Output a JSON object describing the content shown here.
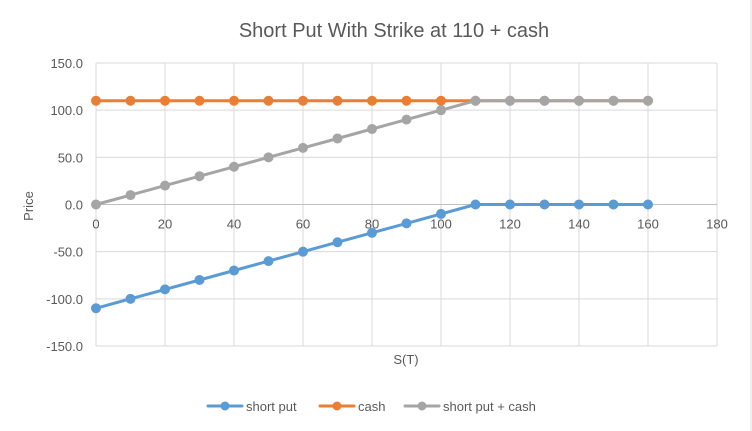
{
  "chart_data": {
    "type": "scatter",
    "title": "Short Put With Strike at 110 + cash",
    "xlabel": "S(T)",
    "ylabel": "Price",
    "xlim": [
      0,
      180
    ],
    "ylim": [
      -150,
      150
    ],
    "xticks": [
      0,
      20,
      40,
      60,
      80,
      100,
      120,
      140,
      160,
      180
    ],
    "yticks": [
      150,
      100,
      50,
      0,
      -50,
      -100,
      -150
    ],
    "ytick_labels": [
      "150.0",
      "100.0",
      "50.0",
      "0.0",
      "-50.0",
      "-100.0",
      "-150.0"
    ],
    "grid": true,
    "legend_position": "bottom",
    "x": [
      0,
      10,
      20,
      30,
      40,
      50,
      60,
      70,
      80,
      90,
      100,
      110,
      120,
      130,
      140,
      150,
      160
    ],
    "series": [
      {
        "name": "short put",
        "color": "#5B9BD5",
        "values": [
          -110,
          -100,
          -90,
          -80,
          -70,
          -60,
          -50,
          -40,
          -30,
          -20,
          -10,
          0,
          0,
          0,
          0,
          0,
          0
        ]
      },
      {
        "name": "cash",
        "color": "#ED7D31",
        "values": [
          110,
          110,
          110,
          110,
          110,
          110,
          110,
          110,
          110,
          110,
          110,
          110,
          110,
          110,
          110,
          110,
          110
        ]
      },
      {
        "name": "short put + cash",
        "color": "#A5A5A5",
        "values": [
          0,
          10,
          20,
          30,
          40,
          50,
          60,
          70,
          80,
          90,
          100,
          110,
          110,
          110,
          110,
          110,
          110
        ]
      }
    ]
  }
}
